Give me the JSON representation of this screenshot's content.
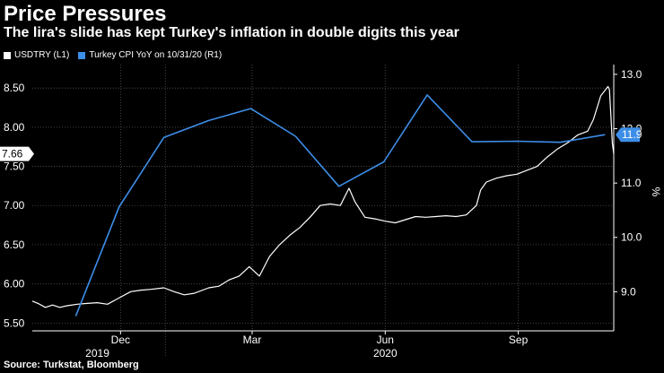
{
  "header": {
    "title": "Price Pressures",
    "subtitle": "The lira's slide has kept Turkey's inflation in double digits this year"
  },
  "legend": [
    {
      "label": "USDTRY (L1)",
      "color": "#ffffff"
    },
    {
      "label": "Turkey CPI YoY on 10/31/20 (R1)",
      "color": "#3d8ee8"
    }
  ],
  "source": "Source: Turkstat, Bloomberg",
  "colors": {
    "background": "#000000",
    "usdtry": "#ffffff",
    "cpi": "#3d8ee8",
    "grid": "#555555"
  },
  "chart_data": {
    "type": "line",
    "title": "Price Pressures",
    "subtitle": "The lira's slide has kept Turkey's inflation in double digits this year",
    "x_range": [
      "2019-10-01",
      "2020-11-06"
    ],
    "x_ticks": [
      {
        "date": "2019-12-01",
        "label": "Dec"
      },
      {
        "date": "2020-03-01",
        "label": "Mar"
      },
      {
        "date": "2020-06-01",
        "label": "Jun"
      },
      {
        "date": "2020-09-01",
        "label": "Sep"
      }
    ],
    "year_labels": [
      {
        "date": "2019-11-15",
        "label": "2019"
      },
      {
        "date": "2020-06-01",
        "label": "2020"
      }
    ],
    "left_axis": {
      "ylim": [
        5.4,
        8.8
      ],
      "ticks": [
        5.5,
        6.0,
        6.5,
        7.0,
        7.5,
        8.0,
        8.5
      ],
      "tick_labels": [
        "5.50",
        "6.00",
        "6.50",
        "7.00",
        "7.50",
        "8.00",
        "8.50"
      ]
    },
    "right_axis": {
      "ylim": [
        8.28,
        13.18
      ],
      "ticks": [
        9.0,
        10.0,
        11.0,
        12.0,
        13.0
      ],
      "tick_labels": [
        "9.0",
        "10.0",
        "11.0",
        "12.0",
        "13.0"
      ],
      "label": "%"
    },
    "last_value_labels": {
      "usdtry": "7.66",
      "cpi": "11.9"
    },
    "series": [
      {
        "name": "USDTRY (L1)",
        "axis": "left",
        "points": [
          [
            "2019-10-01",
            5.78
          ],
          [
            "2019-10-05",
            5.75
          ],
          [
            "2019-10-10",
            5.7
          ],
          [
            "2019-10-15",
            5.73
          ],
          [
            "2019-10-20",
            5.7
          ],
          [
            "2019-10-25",
            5.72
          ],
          [
            "2019-11-01",
            5.74
          ],
          [
            "2019-11-08",
            5.75
          ],
          [
            "2019-11-15",
            5.76
          ],
          [
            "2019-11-22",
            5.74
          ],
          [
            "2019-12-01",
            5.83
          ],
          [
            "2019-12-08",
            5.9
          ],
          [
            "2019-12-15",
            5.92
          ],
          [
            "2019-12-22",
            5.93
          ],
          [
            "2019-12-31",
            5.95
          ],
          [
            "2020-01-07",
            5.9
          ],
          [
            "2020-01-14",
            5.86
          ],
          [
            "2020-01-21",
            5.88
          ],
          [
            "2020-01-31",
            5.95
          ],
          [
            "2020-02-07",
            5.97
          ],
          [
            "2020-02-14",
            6.05
          ],
          [
            "2020-02-21",
            6.1
          ],
          [
            "2020-02-28",
            6.22
          ],
          [
            "2020-03-06",
            6.1
          ],
          [
            "2020-03-13",
            6.35
          ],
          [
            "2020-03-20",
            6.5
          ],
          [
            "2020-03-27",
            6.62
          ],
          [
            "2020-04-03",
            6.72
          ],
          [
            "2020-04-10",
            6.85
          ],
          [
            "2020-04-17",
            7.0
          ],
          [
            "2020-04-24",
            7.02
          ],
          [
            "2020-05-01",
            7.0
          ],
          [
            "2020-05-05",
            7.15
          ],
          [
            "2020-05-07",
            7.22
          ],
          [
            "2020-05-11",
            7.05
          ],
          [
            "2020-05-18",
            6.85
          ],
          [
            "2020-05-25",
            6.83
          ],
          [
            "2020-06-01",
            6.8
          ],
          [
            "2020-06-08",
            6.78
          ],
          [
            "2020-06-15",
            6.82
          ],
          [
            "2020-06-22",
            6.86
          ],
          [
            "2020-06-29",
            6.85
          ],
          [
            "2020-07-06",
            6.86
          ],
          [
            "2020-07-13",
            6.87
          ],
          [
            "2020-07-20",
            6.86
          ],
          [
            "2020-07-27",
            6.88
          ],
          [
            "2020-08-03",
            7.0
          ],
          [
            "2020-08-06",
            7.2
          ],
          [
            "2020-08-10",
            7.3
          ],
          [
            "2020-08-17",
            7.35
          ],
          [
            "2020-08-24",
            7.38
          ],
          [
            "2020-08-31",
            7.4
          ],
          [
            "2020-09-07",
            7.45
          ],
          [
            "2020-09-14",
            7.5
          ],
          [
            "2020-09-21",
            7.62
          ],
          [
            "2020-09-28",
            7.72
          ],
          [
            "2020-10-05",
            7.8
          ],
          [
            "2020-10-12",
            7.9
          ],
          [
            "2020-10-19",
            7.95
          ],
          [
            "2020-10-23",
            8.1
          ],
          [
            "2020-10-28",
            8.4
          ],
          [
            "2020-11-02",
            8.52
          ],
          [
            "2020-11-03",
            8.48
          ],
          [
            "2020-11-04",
            8.15
          ],
          [
            "2020-11-05",
            7.8
          ],
          [
            "2020-11-06",
            7.66
          ]
        ]
      },
      {
        "name": "Turkey CPI YoY on 10/31/20 (R1)",
        "axis": "right",
        "points": [
          [
            "2019-10-31",
            8.55
          ],
          [
            "2019-11-30",
            10.56
          ],
          [
            "2019-12-31",
            11.84
          ],
          [
            "2020-01-31",
            12.15
          ],
          [
            "2020-02-29",
            12.37
          ],
          [
            "2020-03-31",
            11.86
          ],
          [
            "2020-04-30",
            10.94
          ],
          [
            "2020-05-31",
            11.39
          ],
          [
            "2020-06-30",
            12.62
          ],
          [
            "2020-07-31",
            11.76
          ],
          [
            "2020-08-31",
            11.77
          ],
          [
            "2020-09-30",
            11.75
          ],
          [
            "2020-10-31",
            11.89
          ]
        ]
      }
    ]
  }
}
